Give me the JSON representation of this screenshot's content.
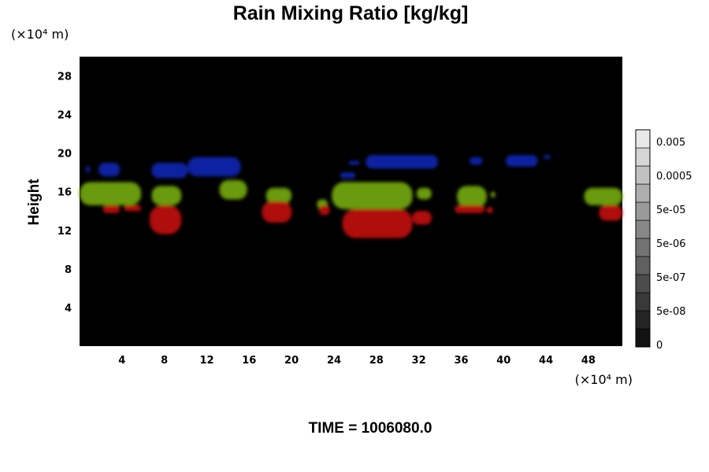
{
  "chart_data": {
    "type": "heatmap",
    "title": "Rain Mixing Ratio [kg/kg]",
    "ylabel": "Height",
    "xlabel": "",
    "x_unit": "(×10⁴ m)",
    "y_unit": "(×10⁴ m)",
    "xlim": [
      0,
      51.2
    ],
    "ylim": [
      0,
      30
    ],
    "x_ticks": [
      4,
      8,
      12,
      16,
      20,
      24,
      28,
      32,
      36,
      40,
      44,
      48
    ],
    "y_ticks": [
      4,
      8,
      12,
      16,
      20,
      24,
      28
    ],
    "background_color": "#000000",
    "colorbar": {
      "labels": [
        "0.005",
        "0.0005",
        "5e-05",
        "5e-06",
        "5e-07",
        "5e-08",
        "0"
      ],
      "levels": 12
    },
    "series": [
      {
        "color": "#1020a0",
        "patches": [
          {
            "x": [
              0.6,
              1.0
            ],
            "y": [
              18.0,
              18.6
            ]
          },
          {
            "x": [
              1.8,
              3.8
            ],
            "y": [
              17.6,
              19.0
            ]
          },
          {
            "x": [
              6.8,
              10.2
            ],
            "y": [
              17.4,
              19.0
            ]
          },
          {
            "x": [
              10.2,
              15.2
            ],
            "y": [
              17.6,
              19.6
            ]
          },
          {
            "x": [
              24.6,
              26.0
            ],
            "y": [
              17.4,
              18.0
            ]
          },
          {
            "x": [
              25.4,
              26.4
            ],
            "y": [
              18.8,
              19.2
            ]
          },
          {
            "x": [
              27.0,
              33.8
            ],
            "y": [
              18.4,
              19.8
            ]
          },
          {
            "x": [
              36.8,
              38.0
            ],
            "y": [
              18.8,
              19.6
            ]
          },
          {
            "x": [
              40.2,
              43.2
            ],
            "y": [
              18.6,
              19.8
            ]
          },
          {
            "x": [
              43.8,
              44.4
            ],
            "y": [
              19.4,
              19.8
            ]
          }
        ]
      },
      {
        "color": "#6a9a10",
        "patches": [
          {
            "x": [
              0,
              5.8
            ],
            "y": [
              14.6,
              17.0
            ]
          },
          {
            "x": [
              6.8,
              9.6
            ],
            "y": [
              14.6,
              16.6
            ]
          },
          {
            "x": [
              13.2,
              15.8
            ],
            "y": [
              15.2,
              17.2
            ]
          },
          {
            "x": [
              17.6,
              20.0
            ],
            "y": [
              14.8,
              16.4
            ]
          },
          {
            "x": [
              22.4,
              23.4
            ],
            "y": [
              14.2,
              15.2
            ]
          },
          {
            "x": [
              23.8,
              31.4
            ],
            "y": [
              14.2,
              17.0
            ]
          },
          {
            "x": [
              31.8,
              33.2
            ],
            "y": [
              15.2,
              16.4
            ]
          },
          {
            "x": [
              35.6,
              38.4
            ],
            "y": [
              14.4,
              16.6
            ]
          },
          {
            "x": [
              38.8,
              39.2
            ],
            "y": [
              15.4,
              16.0
            ]
          },
          {
            "x": [
              47.6,
              51.2
            ],
            "y": [
              14.6,
              16.4
            ]
          }
        ]
      },
      {
        "color": "#b01010",
        "patches": [
          {
            "x": [
              2.2,
              3.8
            ],
            "y": [
              13.8,
              14.6
            ]
          },
          {
            "x": [
              4.2,
              5.8
            ],
            "y": [
              14.0,
              14.6
            ]
          },
          {
            "x": [
              6.6,
              9.6
            ],
            "y": [
              11.6,
              14.6
            ]
          },
          {
            "x": [
              17.2,
              20.0
            ],
            "y": [
              12.8,
              15.0
            ]
          },
          {
            "x": [
              22.6,
              23.6
            ],
            "y": [
              13.6,
              14.6
            ]
          },
          {
            "x": [
              24.8,
              31.4
            ],
            "y": [
              11.2,
              14.2
            ]
          },
          {
            "x": [
              31.4,
              33.2
            ],
            "y": [
              12.6,
              14.0
            ]
          },
          {
            "x": [
              35.4,
              38.2
            ],
            "y": [
              13.8,
              14.6
            ]
          },
          {
            "x": [
              38.4,
              39.0
            ],
            "y": [
              13.8,
              14.4
            ]
          },
          {
            "x": [
              49.0,
              51.2
            ],
            "y": [
              13.0,
              14.6
            ]
          }
        ]
      }
    ]
  },
  "footer": {
    "time_label": "TIME = 1006080.0"
  }
}
